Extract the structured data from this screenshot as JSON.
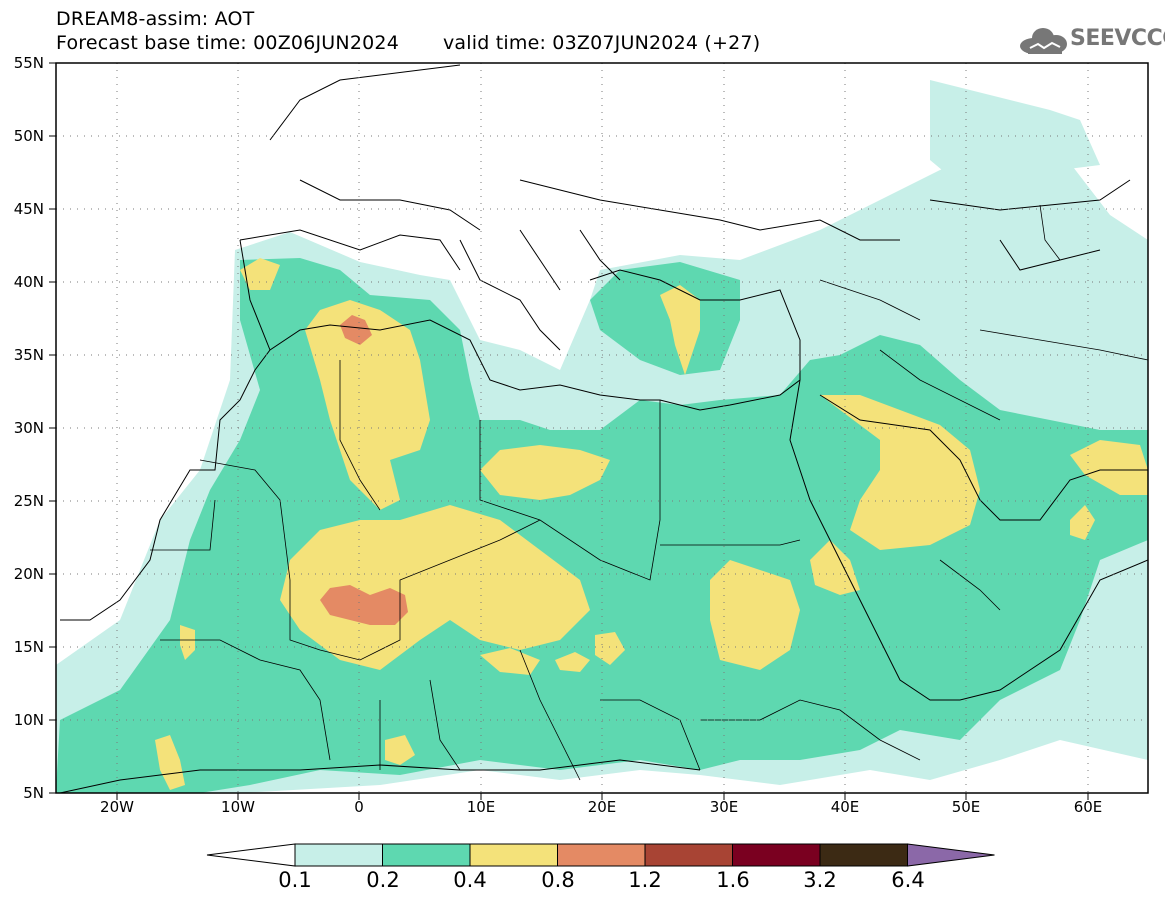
{
  "title": {
    "line1": "DREAM8-assim: AOT",
    "line2_left": "Forecast base time: 00Z06JUN2024",
    "line2_right": "valid time: 03Z07JUN2024 (+27)"
  },
  "logo": {
    "text": "SEEVCCC",
    "icon": "cloud-icon"
  },
  "axes": {
    "y_ticks": [
      "55N",
      "50N",
      "45N",
      "40N",
      "35N",
      "30N",
      "25N",
      "20N",
      "15N",
      "10N",
      "5N"
    ],
    "x_ticks": [
      "20W",
      "10W",
      "0",
      "10E",
      "20E",
      "30E",
      "40E",
      "50E",
      "60E"
    ]
  },
  "colorbar": {
    "labels": [
      "0.1",
      "0.2",
      "0.4",
      "0.8",
      "1.2",
      "1.6",
      "3.2",
      "6.4"
    ],
    "colors": [
      "#ffffff",
      "#c7efe8",
      "#5ed8b0",
      "#f4e27a",
      "#e48a64",
      "#a84434",
      "#7a0020",
      "#3c2a14",
      "#8b68a8"
    ]
  },
  "colors": {
    "ocean": "#ffffff",
    "land": "#ffffff",
    "level1": "#c7efe8",
    "level2": "#5ed8b0",
    "level3": "#f4e27a",
    "level4": "#e48a64"
  }
}
